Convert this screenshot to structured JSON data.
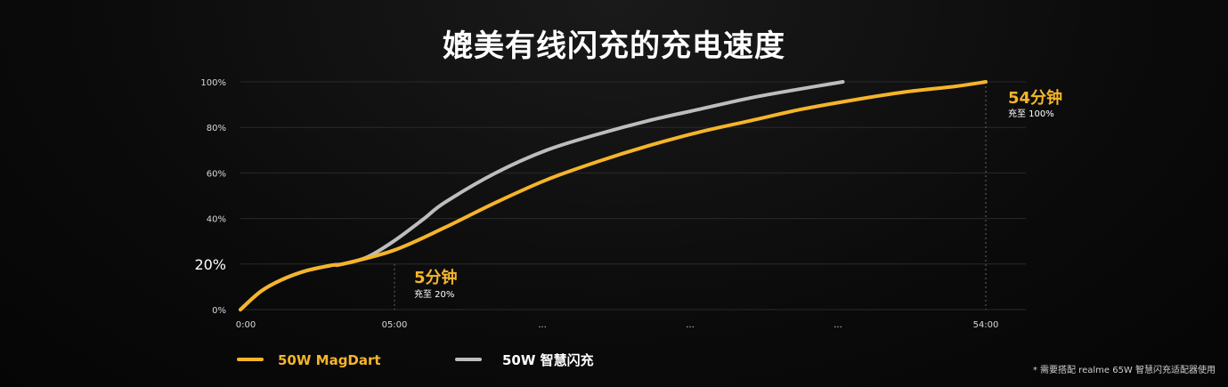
{
  "title": "媲美有线闪充的充电速度",
  "footnote": "* 需要搭配 realme 65W 智慧闪充适配器使用",
  "colors": {
    "magdart": "#f5b52a",
    "smart": "#bdbdbd",
    "grid": "#2a2a2a",
    "axis_text": "#d8d8d8"
  },
  "chart_data": {
    "type": "line",
    "x_ticks": [
      "0:00",
      "05:00",
      "...",
      "...",
      "...",
      "54:00"
    ],
    "y_ticks": [
      "0%",
      "20%",
      "40%",
      "60%",
      "80%",
      "100%"
    ],
    "ylim": [
      0,
      100
    ],
    "series": [
      {
        "name": "50W MagDart",
        "points": [
          [
            0,
            0
          ],
          [
            10,
            8
          ],
          [
            20,
            13
          ],
          [
            32,
            17
          ],
          [
            45,
            19.5
          ],
          [
            50,
            20
          ],
          [
            75,
            26
          ],
          [
            100,
            36
          ],
          [
            125,
            47
          ],
          [
            150,
            57
          ],
          [
            175,
            65
          ],
          [
            200,
            72
          ],
          [
            225,
            78
          ],
          [
            250,
            83
          ],
          [
            275,
            88
          ],
          [
            300,
            92
          ],
          [
            325,
            95.5
          ],
          [
            350,
            98
          ],
          [
            365,
            100
          ]
        ]
      },
      {
        "name": "50W 智慧闪充",
        "points": [
          [
            0,
            0
          ],
          [
            10,
            8
          ],
          [
            20,
            13
          ],
          [
            32,
            17
          ],
          [
            45,
            19.5
          ],
          [
            50,
            20
          ],
          [
            62,
            23
          ],
          [
            75,
            30
          ],
          [
            90,
            40
          ],
          [
            100,
            47
          ],
          [
            125,
            60
          ],
          [
            150,
            70
          ],
          [
            175,
            77
          ],
          [
            200,
            83
          ],
          [
            225,
            88
          ],
          [
            250,
            93
          ],
          [
            275,
            97
          ],
          [
            295,
            100
          ]
        ]
      }
    ],
    "annotations": [
      {
        "label": "5分钟",
        "sublabel": "充至 20%"
      },
      {
        "label": "54分钟",
        "sublabel": "充至 100%"
      }
    ]
  }
}
